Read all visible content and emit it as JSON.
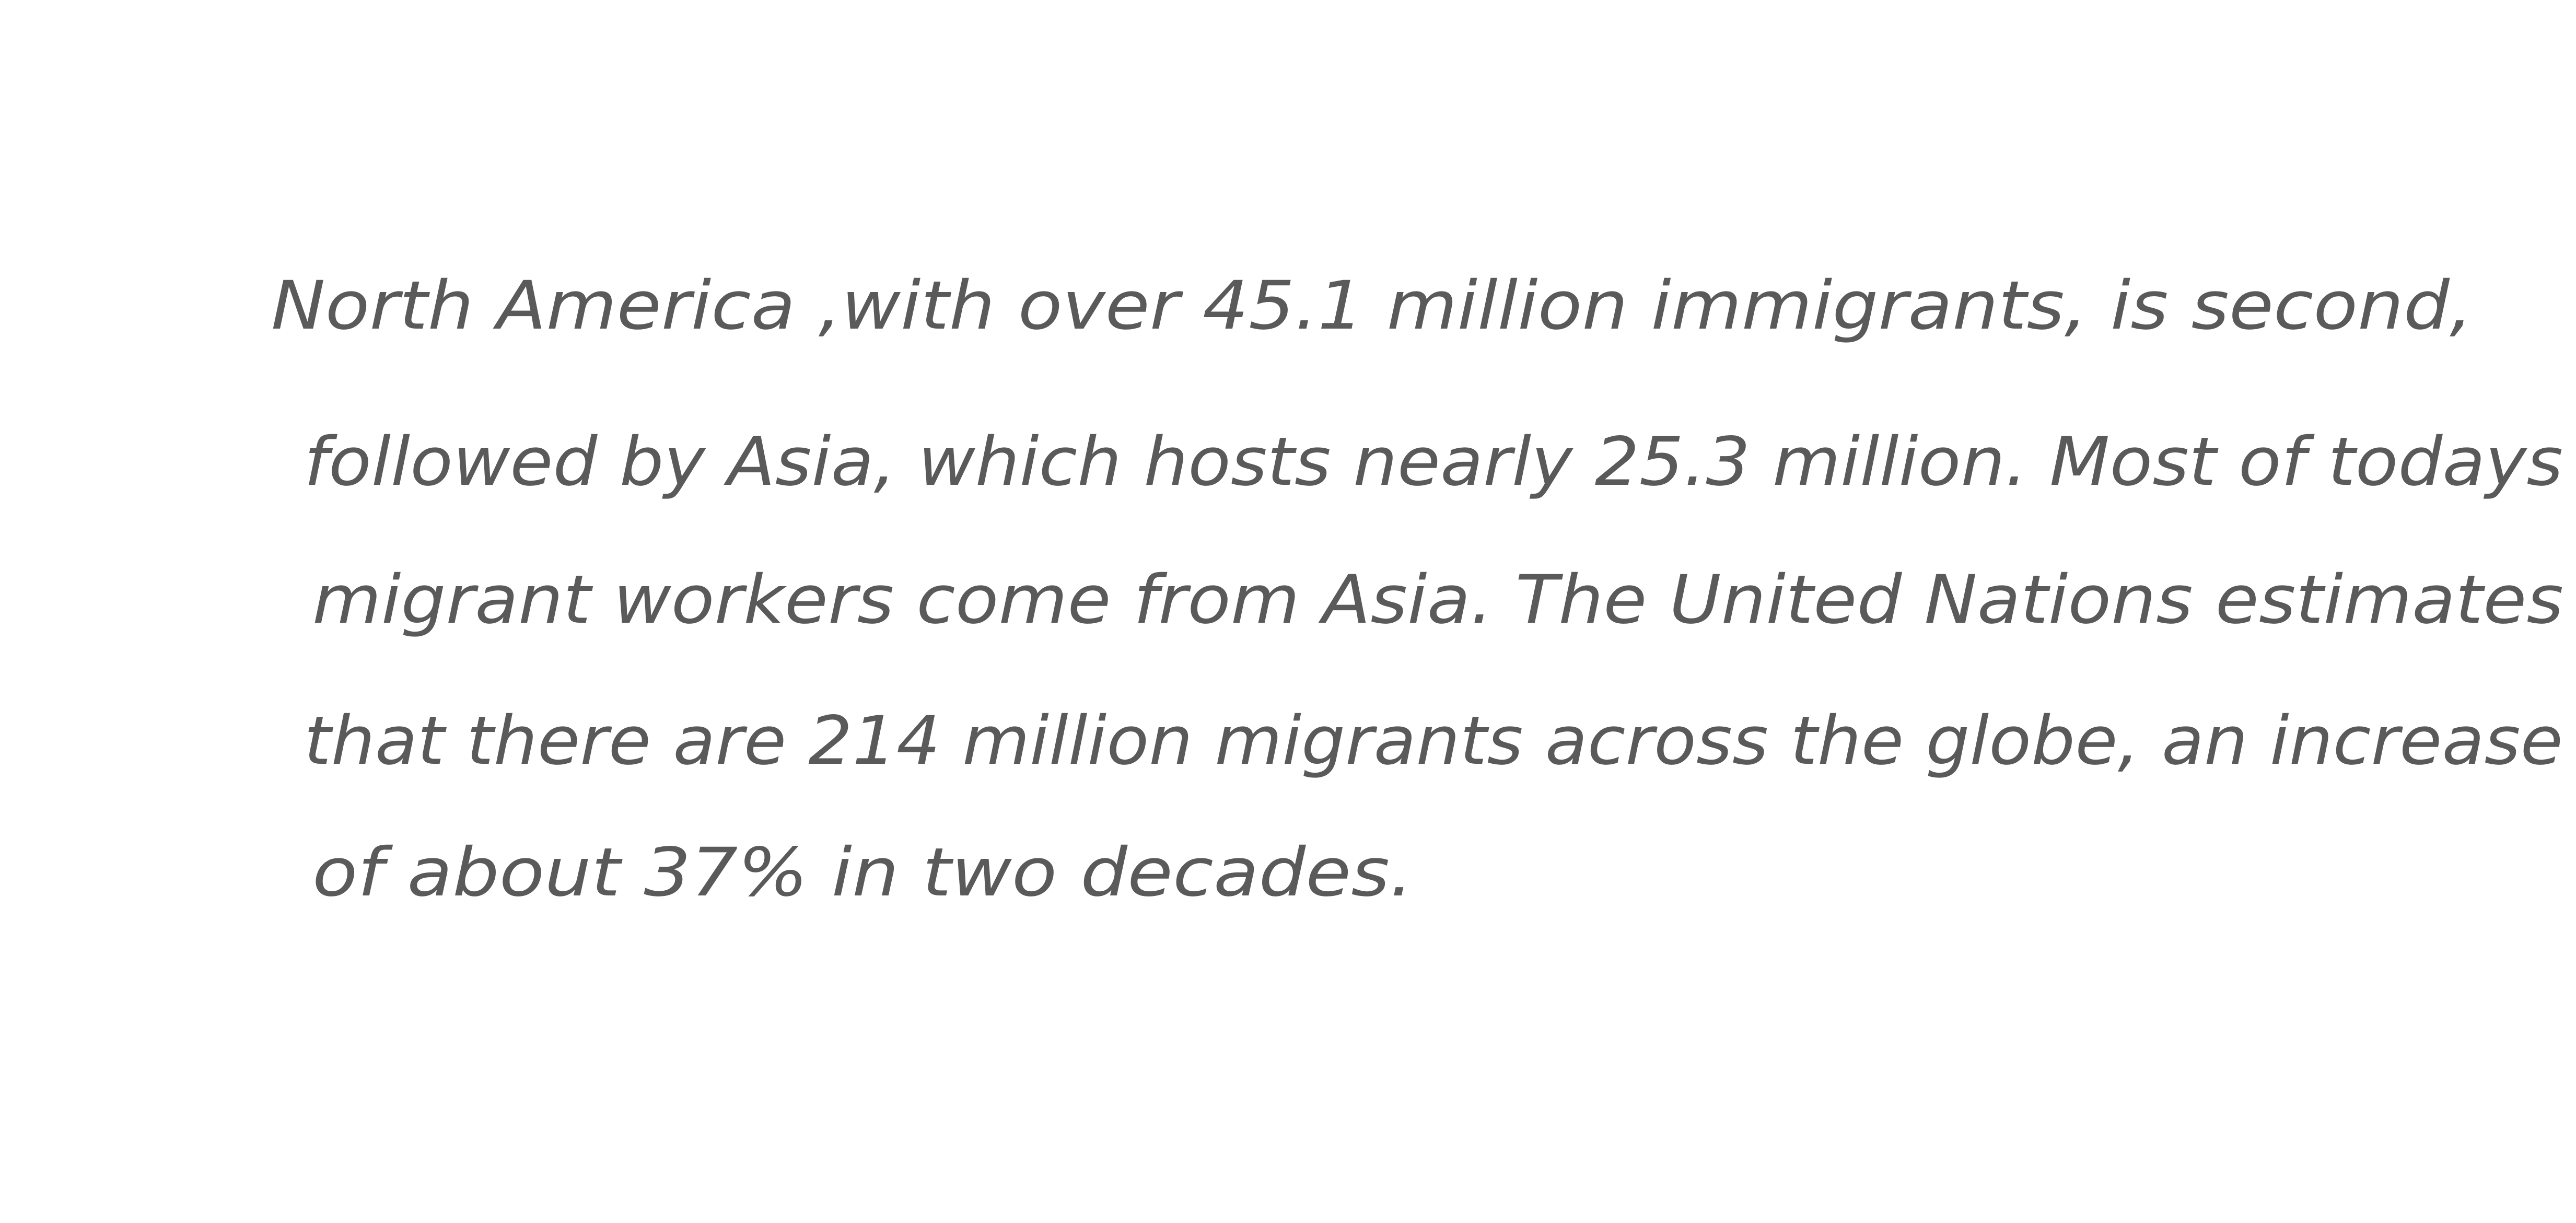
{
  "lines": [
    "North America ,with over 45.1 million immigrants, is second,",
    "followed by Asia, which hosts nearly 25.3 million. Most of todays",
    "migrant workers come from Asia. The United Nations estimates",
    "that there are 214 million migrants across the globe, an increase",
    "of about 37% in two decades."
  ]
}
